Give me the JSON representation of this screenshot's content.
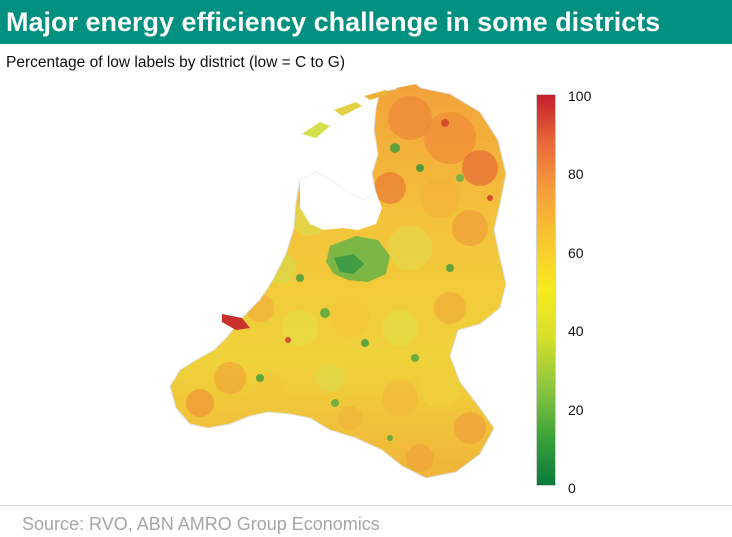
{
  "header": {
    "title": "Major energy efficiency challenge in some districts"
  },
  "subtitle": "Percentage of low labels by district (low = C to G)",
  "legend": {
    "scale_min": 0,
    "scale_max": 100,
    "ticks": [
      "100",
      "80",
      "60",
      "40",
      "20",
      "0"
    ],
    "colors": [
      "#0a7a3a",
      "#8cc63f",
      "#f7ea1e",
      "#f6a03a",
      "#c51f2a"
    ]
  },
  "source": "Source: RVO, ABN AMRO Group Economics"
}
